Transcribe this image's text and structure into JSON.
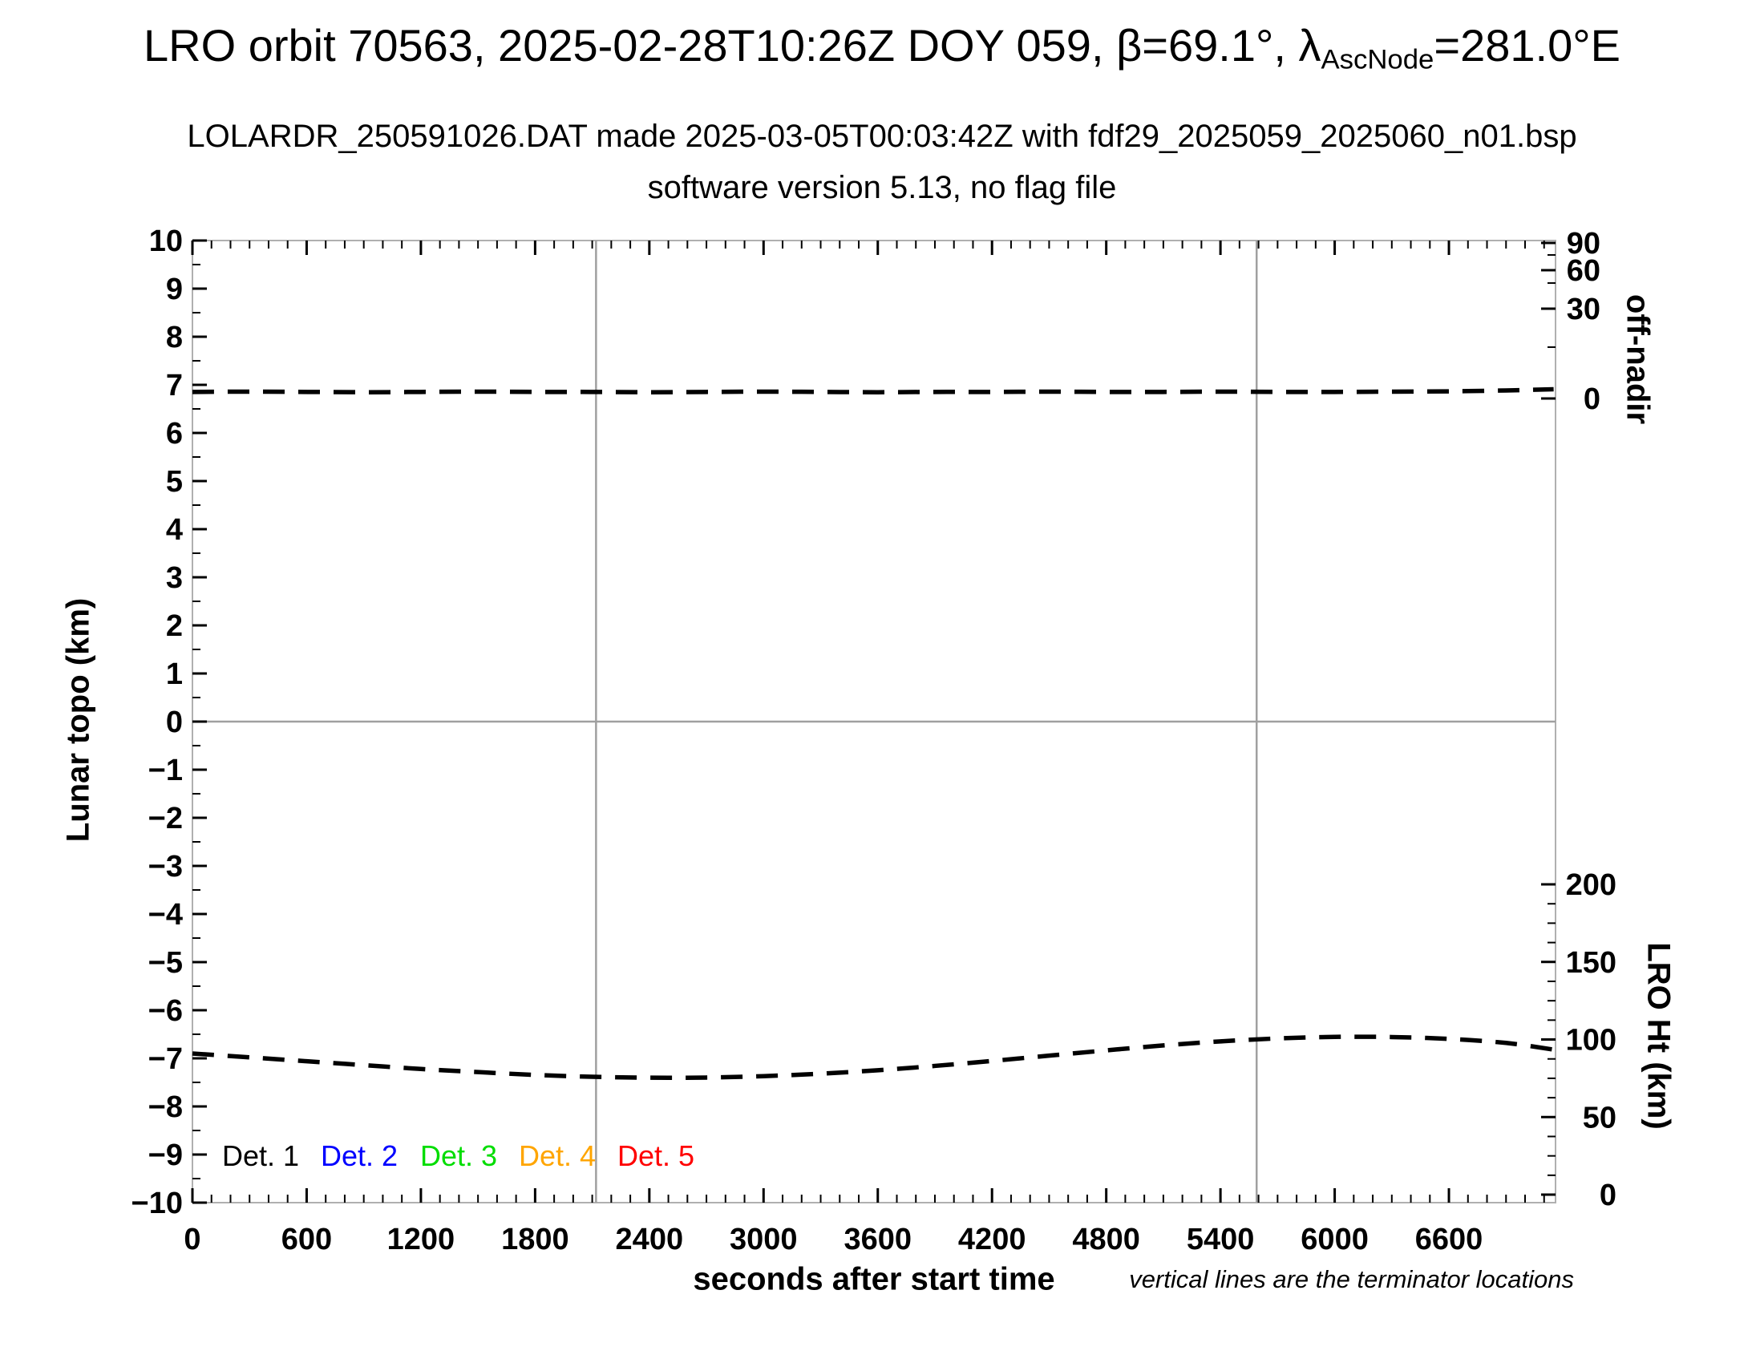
{
  "header": {
    "title_pre": "LRO orbit 70563, 2025-02-28T10:26Z DOY 059, β=69.1°, λ",
    "title_sub": "AscNode",
    "title_post": "=281.0°E",
    "subtitle": "LOLARDR_250591026.DAT made 2025-03-05T00:03:42Z with fdf29_2025059_2025060_n01.bsp",
    "subtitle2": "software version 5.13, no flag file"
  },
  "chart_data": {
    "type": "line",
    "title": "LRO orbit 70563, 2025-02-28T10:26Z DOY 059, β=69.1°, λ AscNode =281.0°E",
    "xlabel": "seconds after start time",
    "x_range": [
      0,
      7160
    ],
    "x_major_ticks": [
      0,
      600,
      1200,
      1800,
      2400,
      3000,
      3600,
      4200,
      4800,
      5400,
      6000,
      6600
    ],
    "x_minor_step": 100,
    "y_left": {
      "label": "Lunar topo (km)",
      "range": [
        -10,
        10
      ],
      "major_step": 1,
      "minor_step": 0.5
    },
    "y_right_top": {
      "label": "off-nadir",
      "tick_values": [
        90,
        60,
        30,
        0
      ],
      "anchors_deg_to_frac": [
        [
          0,
          0.1642
        ],
        [
          30,
          0.0708
        ],
        [
          60,
          0.0308
        ],
        [
          90,
          0.0025
        ]
      ],
      "minor_fracs": [
        0.015,
        0.0442,
        0.1108
      ]
    },
    "y_right_bottom": {
      "label": "LRO Ht (km)",
      "tick_values": [
        200,
        150,
        100,
        50,
        0
      ],
      "anchors_km_to_frac": [
        [
          0,
          0.9917
        ],
        [
          200,
          0.6692
        ]
      ],
      "minor_step_km": 12.5
    },
    "zero_gridline_topo": 0,
    "terminators_s": [
      2120,
      5590
    ],
    "note": "vertical lines are the terminator locations",
    "series": [
      {
        "name": "off-nadir angle",
        "axis": "y_right_top",
        "units": "deg",
        "color": "#000000",
        "dash": [
          27,
          17
        ],
        "t": [
          0,
          300,
          600,
          900,
          1200,
          1500,
          1800,
          2100,
          2400,
          2700,
          3000,
          3300,
          3600,
          3900,
          4200,
          4500,
          4800,
          5100,
          5400,
          5700,
          6000,
          6300,
          6600,
          6900,
          7150
        ],
        "values": [
          2.2,
          2.3,
          2.2,
          2.1,
          2.2,
          2.3,
          2.2,
          2.2,
          2.1,
          2.2,
          2.3,
          2.2,
          2.1,
          2.2,
          2.2,
          2.3,
          2.2,
          2.2,
          2.3,
          2.2,
          2.2,
          2.3,
          2.4,
          2.7,
          3.1
        ]
      },
      {
        "name": "LRO height",
        "axis": "y_right_bottom",
        "units": "km",
        "color": "#000000",
        "dash": [
          27,
          17
        ],
        "t": [
          0,
          300,
          600,
          900,
          1200,
          1500,
          1800,
          2100,
          2400,
          2700,
          3000,
          3300,
          3600,
          3900,
          4200,
          4500,
          4800,
          5100,
          5400,
          5700,
          6000,
          6300,
          6600,
          6900,
          7150
        ],
        "values": [
          91,
          88.5,
          86,
          83.5,
          81,
          79,
          77.2,
          76,
          75.4,
          75.5,
          76.4,
          78,
          80.2,
          83,
          86.2,
          89.6,
          93,
          96.2,
          98.8,
          100.7,
          101.7,
          101.6,
          100.4,
          97.8,
          93.5
        ]
      }
    ],
    "legend": [
      {
        "label": "Det. 1",
        "color": "#000000"
      },
      {
        "label": "Det. 2",
        "color": "#0000ff"
      },
      {
        "label": "Det. 3",
        "color": "#00dd00"
      },
      {
        "label": "Det. 4",
        "color": "#ffa500"
      },
      {
        "label": "Det. 5",
        "color": "#ff0000"
      }
    ],
    "frame_color": "#b0b0b0",
    "grid_color": "#a0a0a0",
    "legend_position": "bottom-left-inside",
    "grid": "zero-line-and-terminators-only"
  }
}
